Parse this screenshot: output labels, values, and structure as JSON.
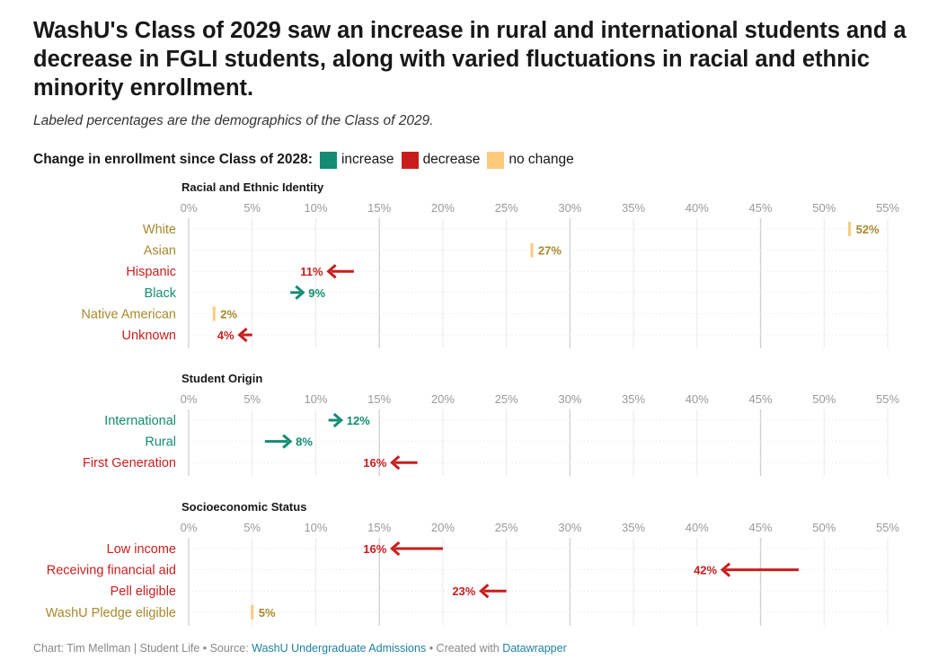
{
  "title": "WashU's Class of 2029 saw an increase in rural and international students and a decrease in FGLI students, along with varied fluctuations in racial and ethnic minority enrollment.",
  "subtitle": "Labeled percentages are the demographics of the Class of 2029.",
  "legend": {
    "title": "Change in enrollment since Class of 2028:",
    "items": [
      {
        "label": "increase",
        "color": "#138c73"
      },
      {
        "label": "decrease",
        "color": "#c71e1d"
      },
      {
        "label": "no change",
        "color": "#fdca7c"
      }
    ]
  },
  "colors": {
    "increase": "#138c73",
    "decrease": "#c71e1d",
    "nochange": "#fdca7c",
    "nochange_text": "#a8882b"
  },
  "chart_data": {
    "type": "arrow",
    "x_ticks": [
      "0%",
      "5%",
      "10%",
      "15%",
      "20%",
      "25%",
      "30%",
      "35%",
      "40%",
      "45%",
      "50%",
      "55%"
    ],
    "xlim": [
      0,
      55
    ],
    "panels": [
      {
        "title": "Racial and Ethnic Identity",
        "rows": [
          {
            "label": "White",
            "from": 52,
            "to": 52,
            "value_label": "52%",
            "change": "nochange"
          },
          {
            "label": "Asian",
            "from": 27,
            "to": 27,
            "value_label": "27%",
            "change": "nochange"
          },
          {
            "label": "Hispanic",
            "from": 13,
            "to": 11,
            "value_label": "11%",
            "change": "decrease"
          },
          {
            "label": "Black",
            "from": 8,
            "to": 9,
            "value_label": "9%",
            "change": "increase"
          },
          {
            "label": "Native American",
            "from": 2,
            "to": 2,
            "value_label": "2%",
            "change": "nochange"
          },
          {
            "label": "Unknown",
            "from": 5,
            "to": 4,
            "value_label": "4%",
            "change": "decrease"
          }
        ]
      },
      {
        "title": "Student Origin",
        "rows": [
          {
            "label": "International",
            "from": 11,
            "to": 12,
            "value_label": "12%",
            "change": "increase"
          },
          {
            "label": "Rural",
            "from": 6,
            "to": 8,
            "value_label": "8%",
            "change": "increase"
          },
          {
            "label": "First Generation",
            "from": 18,
            "to": 16,
            "value_label": "16%",
            "change": "decrease"
          }
        ]
      },
      {
        "title": "Socioeconomic Status",
        "rows": [
          {
            "label": "Low income",
            "from": 20,
            "to": 16,
            "value_label": "16%",
            "change": "decrease"
          },
          {
            "label": "Receiving financial aid",
            "from": 48,
            "to": 42,
            "value_label": "42%",
            "change": "decrease"
          },
          {
            "label": "Pell eligible",
            "from": 25,
            "to": 23,
            "value_label": "23%",
            "change": "decrease"
          },
          {
            "label": "WashU Pledge eligible",
            "from": 5,
            "to": 5,
            "value_label": "5%",
            "change": "nochange"
          }
        ]
      }
    ]
  },
  "footer": {
    "prefix": "Chart: Tim Mellman | Student Life • Source: ",
    "source": "WashU Undergraduate Admissions",
    "middle": " • Created with ",
    "tool": "Datawrapper"
  }
}
